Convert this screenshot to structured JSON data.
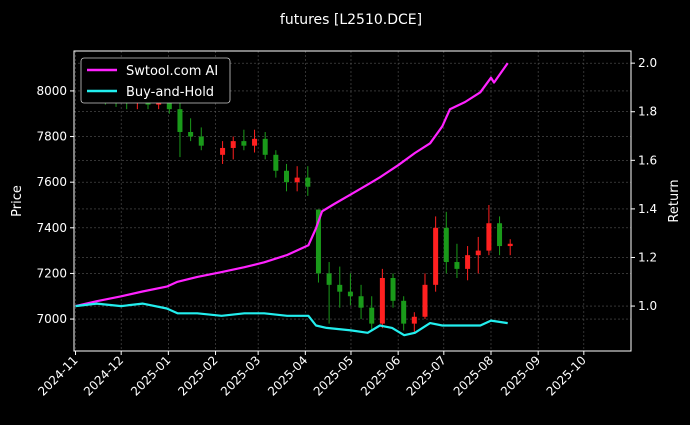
{
  "chart_data": {
    "type": "candlestick+line",
    "title": "futures [L2510.DCE]",
    "ylabel": "Price",
    "y2label": "Return",
    "ylim": [
      6860,
      8175
    ],
    "y2lim": [
      0.815,
      2.05
    ],
    "xlim": [
      "2024-10-31",
      "2025-11-01"
    ],
    "yticks": [
      7000,
      7200,
      7400,
      7600,
      7800,
      8000
    ],
    "y2ticks": [
      "1.0",
      "1.2",
      "1.4",
      "1.6",
      "1.8",
      "2.0"
    ],
    "xticks": [
      "2024-11",
      "2024-12",
      "2025-01",
      "2025-02",
      "2025-03",
      "2025-04",
      "2025-05",
      "2025-06",
      "2025-07",
      "2025-08",
      "2025-09",
      "2025-10"
    ],
    "grid": true,
    "legend_position": "top-left",
    "colors": {
      "up": "#ff2020",
      "down": "#1a9a1a",
      "strategy": "#ff22ff",
      "benchmark": "#22eeee",
      "background": "#000000"
    },
    "candles": [
      [
        "2024-11-04",
        8000,
        8030,
        7960,
        7990
      ],
      [
        "2024-11-11",
        7990,
        8020,
        7950,
        7980
      ],
      [
        "2024-11-18",
        7980,
        8010,
        7940,
        7970
      ],
      [
        "2024-11-25",
        7970,
        8000,
        7930,
        7960
      ],
      [
        "2024-12-02",
        7960,
        7990,
        7920,
        7950
      ],
      [
        "2024-12-09",
        7950,
        7990,
        7920,
        7960
      ],
      [
        "2024-12-16",
        7960,
        7980,
        7920,
        7940
      ],
      [
        "2024-12-23",
        7940,
        8000,
        7920,
        7980
      ],
      [
        "2024-12-30",
        7980,
        8030,
        7900,
        7920
      ],
      [
        "2025-01-06",
        7920,
        7950,
        7710,
        7820
      ],
      [
        "2025-01-13",
        7820,
        7880,
        7780,
        7800
      ],
      [
        "2025-01-20",
        7800,
        7840,
        7740,
        7760
      ],
      [
        "2025-02-03",
        7720,
        7780,
        7680,
        7750
      ],
      [
        "2025-02-10",
        7750,
        7800,
        7700,
        7780
      ],
      [
        "2025-02-17",
        7780,
        7830,
        7740,
        7760
      ],
      [
        "2025-02-24",
        7760,
        7830,
        7730,
        7790
      ],
      [
        "2025-03-03",
        7790,
        7820,
        7700,
        7720
      ],
      [
        "2025-03-10",
        7720,
        7740,
        7620,
        7650
      ],
      [
        "2025-03-17",
        7650,
        7680,
        7560,
        7600
      ],
      [
        "2025-03-24",
        7600,
        7670,
        7560,
        7620
      ],
      [
        "2025-03-31",
        7620,
        7670,
        7540,
        7580
      ],
      [
        "2025-04-07",
        7480,
        7480,
        7160,
        7200
      ],
      [
        "2025-04-14",
        7200,
        7250,
        6980,
        7150
      ],
      [
        "2025-04-21",
        7150,
        7230,
        7050,
        7120
      ],
      [
        "2025-04-28",
        7120,
        7200,
        7060,
        7100
      ],
      [
        "2025-05-05",
        7100,
        7150,
        7000,
        7050
      ],
      [
        "2025-05-12",
        7050,
        7100,
        6950,
        6980
      ],
      [
        "2025-05-19",
        6980,
        7220,
        6960,
        7180
      ],
      [
        "2025-05-26",
        7180,
        7200,
        7050,
        7080
      ],
      [
        "2025-06-02",
        7080,
        7100,
        6950,
        6980
      ],
      [
        "2025-06-09",
        6980,
        7030,
        6940,
        7010
      ],
      [
        "2025-06-16",
        7010,
        7200,
        7000,
        7150
      ],
      [
        "2025-06-23",
        7150,
        7450,
        7120,
        7400
      ],
      [
        "2025-06-30",
        7400,
        7470,
        7200,
        7250
      ],
      [
        "2025-07-07",
        7250,
        7330,
        7180,
        7220
      ],
      [
        "2025-07-14",
        7220,
        7320,
        7170,
        7280
      ],
      [
        "2025-07-21",
        7280,
        7360,
        7200,
        7300
      ],
      [
        "2025-07-28",
        7300,
        7500,
        7280,
        7420
      ],
      [
        "2025-08-04",
        7420,
        7450,
        7280,
        7320
      ],
      [
        "2025-08-11",
        7320,
        7350,
        7280,
        7330
      ]
    ],
    "series": [
      {
        "name": "Swtool.com AI",
        "points": [
          [
            "2024-11-01",
            1.0
          ],
          [
            "2024-11-15",
            1.02
          ],
          [
            "2024-12-01",
            1.04
          ],
          [
            "2024-12-15",
            1.06
          ],
          [
            "2024-12-31",
            1.08
          ],
          [
            "2025-01-07",
            1.1
          ],
          [
            "2025-01-20",
            1.12
          ],
          [
            "2025-02-05",
            1.14
          ],
          [
            "2025-02-20",
            1.16
          ],
          [
            "2025-03-05",
            1.18
          ],
          [
            "2025-03-20",
            1.21
          ],
          [
            "2025-04-03",
            1.25
          ],
          [
            "2025-04-08",
            1.32
          ],
          [
            "2025-04-12",
            1.39
          ],
          [
            "2025-04-20",
            1.42
          ],
          [
            "2025-05-01",
            1.46
          ],
          [
            "2025-05-12",
            1.5
          ],
          [
            "2025-05-20",
            1.53
          ],
          [
            "2025-06-01",
            1.58
          ],
          [
            "2025-06-12",
            1.63
          ],
          [
            "2025-06-22",
            1.67
          ],
          [
            "2025-06-30",
            1.74
          ],
          [
            "2025-07-05",
            1.81
          ],
          [
            "2025-07-15",
            1.84
          ],
          [
            "2025-07-25",
            1.88
          ],
          [
            "2025-08-01",
            1.94
          ],
          [
            "2025-08-03",
            1.92
          ],
          [
            "2025-08-12",
            2.0
          ]
        ]
      },
      {
        "name": "Buy-and-Hold",
        "points": [
          [
            "2024-11-01",
            1.0
          ],
          [
            "2024-11-15",
            1.01
          ],
          [
            "2024-12-01",
            1.0
          ],
          [
            "2024-12-15",
            1.01
          ],
          [
            "2024-12-31",
            0.99
          ],
          [
            "2025-01-07",
            0.97
          ],
          [
            "2025-01-20",
            0.97
          ],
          [
            "2025-02-05",
            0.96
          ],
          [
            "2025-02-20",
            0.97
          ],
          [
            "2025-03-05",
            0.97
          ],
          [
            "2025-03-20",
            0.96
          ],
          [
            "2025-04-03",
            0.96
          ],
          [
            "2025-04-08",
            0.92
          ],
          [
            "2025-04-15",
            0.91
          ],
          [
            "2025-05-01",
            0.9
          ],
          [
            "2025-05-12",
            0.89
          ],
          [
            "2025-05-20",
            0.92
          ],
          [
            "2025-05-28",
            0.91
          ],
          [
            "2025-06-05",
            0.88
          ],
          [
            "2025-06-12",
            0.89
          ],
          [
            "2025-06-22",
            0.93
          ],
          [
            "2025-06-30",
            0.92
          ],
          [
            "2025-07-15",
            0.92
          ],
          [
            "2025-07-25",
            0.92
          ],
          [
            "2025-08-01",
            0.94
          ],
          [
            "2025-08-12",
            0.93
          ]
        ]
      }
    ]
  }
}
